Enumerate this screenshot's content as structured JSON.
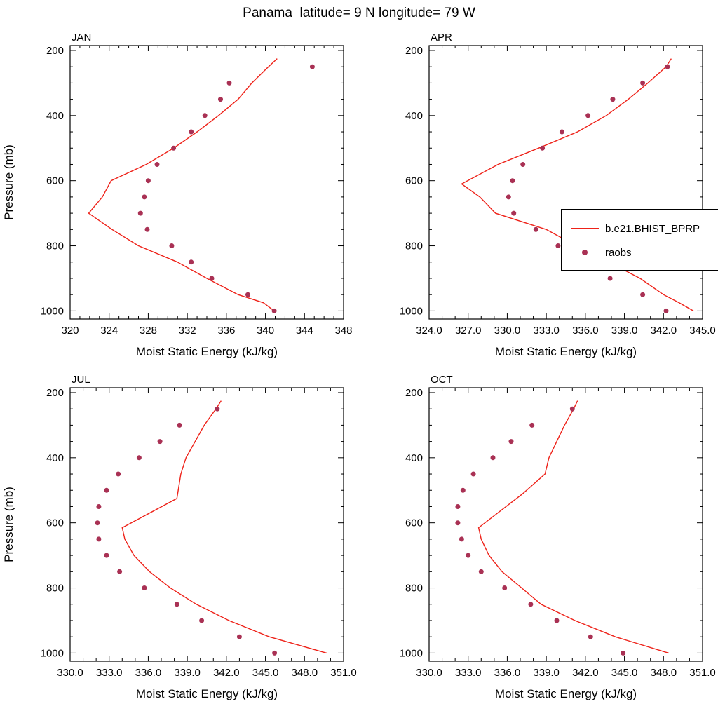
{
  "legend": {
    "model_label": "b.e21.BHIST_BPRP",
    "obs_label": "raobs"
  },
  "colors": {
    "model_line": "#ee2219",
    "obs_dot": "#a93154",
    "axis": "#000000",
    "background": "#ffffff"
  },
  "chart_data": {
    "type": "line",
    "title": "Panama  latitude= 9 N longitude= 79 W",
    "xlabel": "Moist Static Energy (kJ/kg)",
    "ylabel": "Pressure (mb)",
    "legend_position": "right of APR panel, overlapping plot edge, clipped at image edge",
    "grid": false,
    "y_axis": {
      "ticks": [
        200,
        400,
        600,
        800,
        1000
      ],
      "minor_step": 50,
      "range": [
        185,
        1025
      ],
      "inverted": true
    },
    "panels": [
      {
        "id": "jan",
        "label": "JAN",
        "xlim": [
          320,
          348
        ],
        "x_ticks": [
          "320",
          "324",
          "328",
          "332",
          "336",
          "340",
          "344",
          "348"
        ],
        "x_minor_step": 1,
        "show_y_title": true,
        "series": [
          {
            "name": "b.e21.BHIST_BPRP",
            "type": "line",
            "points": [
              [
                225,
                341.2
              ],
              [
                250,
                340.3
              ],
              [
                300,
                338.6
              ],
              [
                350,
                337.2
              ],
              [
                400,
                335.2
              ],
              [
                450,
                333.0
              ],
              [
                500,
                330.6
              ],
              [
                550,
                327.8
              ],
              [
                600,
                324.2
              ],
              [
                650,
                323.3
              ],
              [
                700,
                321.9
              ],
              [
                750,
                324.3
              ],
              [
                800,
                327.0
              ],
              [
                850,
                331.0
              ],
              [
                900,
                334.0
              ],
              [
                950,
                337.2
              ],
              [
                975,
                339.8
              ],
              [
                1000,
                340.9
              ]
            ]
          },
          {
            "name": "raobs",
            "type": "scatter",
            "points": [
              [
                250,
                344.8
              ],
              [
                300,
                336.3
              ],
              [
                350,
                335.4
              ],
              [
                400,
                333.8
              ],
              [
                450,
                332.4
              ],
              [
                500,
                330.6
              ],
              [
                550,
                328.9
              ],
              [
                600,
                328.0
              ],
              [
                650,
                327.6
              ],
              [
                700,
                327.2
              ],
              [
                750,
                327.9
              ],
              [
                800,
                330.4
              ],
              [
                850,
                332.4
              ],
              [
                900,
                334.5
              ],
              [
                950,
                338.2
              ],
              [
                1000,
                340.9
              ]
            ]
          }
        ]
      },
      {
        "id": "apr",
        "label": "APR",
        "xlim": [
          324,
          345
        ],
        "x_ticks": [
          "324.0",
          "327.0",
          "330.0",
          "333.0",
          "336.0",
          "339.0",
          "342.0",
          "345.0"
        ],
        "x_minor_step": 1,
        "show_y_title": false,
        "series": [
          {
            "name": "b.e21.BHIST_BPRP",
            "type": "line",
            "points": [
              [
                225,
                342.6
              ],
              [
                250,
                342.2
              ],
              [
                300,
                340.8
              ],
              [
                350,
                339.3
              ],
              [
                400,
                337.6
              ],
              [
                450,
                335.4
              ],
              [
                500,
                332.4
              ],
              [
                550,
                329.3
              ],
              [
                610,
                326.5
              ],
              [
                650,
                327.9
              ],
              [
                700,
                329.1
              ],
              [
                750,
                333.0
              ],
              [
                800,
                335.3
              ],
              [
                850,
                337.8
              ],
              [
                900,
                340.2
              ],
              [
                950,
                342.0
              ],
              [
                975,
                343.2
              ],
              [
                1000,
                344.3
              ]
            ]
          },
          {
            "name": "raobs",
            "type": "scatter",
            "points": [
              [
                250,
                342.3
              ],
              [
                300,
                340.4
              ],
              [
                350,
                338.1
              ],
              [
                400,
                336.2
              ],
              [
                450,
                334.2
              ],
              [
                500,
                332.7
              ],
              [
                550,
                331.2
              ],
              [
                600,
                330.4
              ],
              [
                650,
                330.1
              ],
              [
                700,
                330.5
              ],
              [
                750,
                332.2
              ],
              [
                800,
                333.9
              ],
              [
                850,
                334.9
              ],
              [
                900,
                337.9
              ],
              [
                950,
                340.4
              ],
              [
                1000,
                342.2
              ]
            ]
          }
        ]
      },
      {
        "id": "jul",
        "label": "JUL",
        "xlim": [
          330,
          351
        ],
        "x_ticks": [
          "330.0",
          "333.0",
          "336.0",
          "339.0",
          "342.0",
          "345.0",
          "348.0",
          "351.0"
        ],
        "x_minor_step": 1,
        "show_y_title": true,
        "series": [
          {
            "name": "b.e21.BHIST_BPRP",
            "type": "line",
            "points": [
              [
                225,
                341.6
              ],
              [
                250,
                341.2
              ],
              [
                300,
                340.3
              ],
              [
                350,
                339.6
              ],
              [
                400,
                338.9
              ],
              [
                450,
                338.5
              ],
              [
                525,
                338.2
              ],
              [
                615,
                334.0
              ],
              [
                650,
                334.2
              ],
              [
                700,
                334.9
              ],
              [
                750,
                336.1
              ],
              [
                800,
                337.7
              ],
              [
                850,
                339.7
              ],
              [
                900,
                342.2
              ],
              [
                950,
                345.3
              ],
              [
                1000,
                349.7
              ]
            ]
          },
          {
            "name": "raobs",
            "type": "scatter",
            "points": [
              [
                250,
                341.3
              ],
              [
                300,
                338.4
              ],
              [
                350,
                336.9
              ],
              [
                400,
                335.3
              ],
              [
                450,
                333.7
              ],
              [
                500,
                332.8
              ],
              [
                550,
                332.2
              ],
              [
                600,
                332.1
              ],
              [
                650,
                332.2
              ],
              [
                700,
                332.8
              ],
              [
                750,
                333.8
              ],
              [
                800,
                335.7
              ],
              [
                850,
                338.2
              ],
              [
                900,
                340.1
              ],
              [
                950,
                343.0
              ],
              [
                1000,
                345.7
              ]
            ]
          }
        ]
      },
      {
        "id": "oct",
        "label": "OCT",
        "xlim": [
          330,
          351
        ],
        "x_ticks": [
          "330.0",
          "333.0",
          "336.0",
          "339.0",
          "342.0",
          "345.0",
          "348.0",
          "351.0"
        ],
        "x_minor_step": 1,
        "show_y_title": false,
        "series": [
          {
            "name": "b.e21.BHIST_BPRP",
            "type": "line",
            "points": [
              [
                225,
                341.4
              ],
              [
                250,
                341.1
              ],
              [
                300,
                340.4
              ],
              [
                350,
                339.8
              ],
              [
                400,
                339.2
              ],
              [
                450,
                338.9
              ],
              [
                510,
                337.2
              ],
              [
                615,
                333.8
              ],
              [
                650,
                334.0
              ],
              [
                700,
                334.6
              ],
              [
                750,
                335.6
              ],
              [
                800,
                337.1
              ],
              [
                850,
                338.6
              ],
              [
                900,
                341.2
              ],
              [
                950,
                344.3
              ],
              [
                1000,
                348.4
              ]
            ]
          },
          {
            "name": "raobs",
            "type": "scatter",
            "points": [
              [
                250,
                341.0
              ],
              [
                300,
                337.9
              ],
              [
                350,
                336.3
              ],
              [
                400,
                334.9
              ],
              [
                450,
                333.4
              ],
              [
                500,
                332.6
              ],
              [
                550,
                332.2
              ],
              [
                600,
                332.2
              ],
              [
                650,
                332.5
              ],
              [
                700,
                333.0
              ],
              [
                750,
                334.0
              ],
              [
                800,
                335.8
              ],
              [
                850,
                337.8
              ],
              [
                900,
                339.8
              ],
              [
                950,
                342.4
              ],
              [
                1000,
                344.9
              ]
            ]
          }
        ]
      }
    ]
  }
}
